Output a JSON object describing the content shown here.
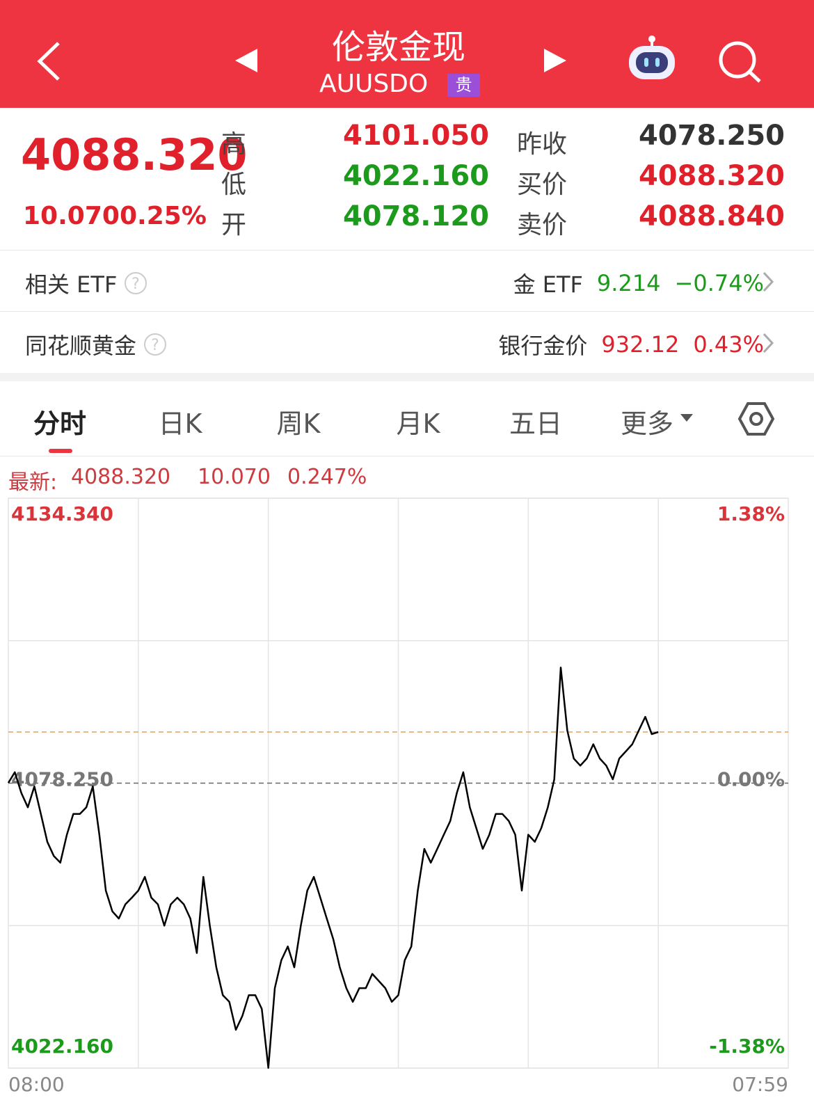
{
  "header": {
    "title": "伦敦金现",
    "code": "AUUSDO",
    "badge": "贵"
  },
  "quote": {
    "price": "4088.320",
    "change": "10.070",
    "change_pct": "0.25%",
    "stats": [
      {
        "label": "高",
        "value": "4101.050"
      },
      {
        "label": "低",
        "value": "4022.160"
      },
      {
        "label": "开",
        "value": "4078.120"
      },
      {
        "label": "昨收",
        "value": "4078.250"
      },
      {
        "label": "买价",
        "value": "4088.320"
      },
      {
        "label": "卖价",
        "value": "4088.840"
      }
    ]
  },
  "links": [
    {
      "label": "相关 ETF",
      "name": "金 ETF",
      "value": "9.214",
      "change": "−0.74%"
    },
    {
      "label": "同花顺黄金",
      "name": "银行金价",
      "value": "932.12",
      "change": "0.43%"
    }
  ],
  "tabs": [
    "分时",
    "日K",
    "周K",
    "月K",
    "五日",
    "更多"
  ],
  "latest": {
    "label": "最新:",
    "price": "4088.320",
    "change": "10.070",
    "change_pct": "0.247%"
  },
  "chart_data": {
    "type": "line",
    "color": "#000000",
    "categories": [
      "08:00",
      null,
      null,
      null,
      null,
      null,
      null,
      null,
      null,
      null,
      null,
      null,
      null,
      null,
      null,
      null,
      null,
      null,
      null,
      null,
      null,
      null,
      null,
      null,
      null,
      null,
      null,
      null,
      null,
      null,
      null,
      null,
      null,
      null,
      null,
      null,
      null,
      null,
      null,
      null,
      null,
      null,
      null,
      null,
      null,
      null,
      null,
      null,
      null,
      null,
      null,
      null,
      null,
      null,
      null,
      null,
      null,
      null,
      null,
      null,
      null,
      null,
      null,
      null,
      null,
      null,
      null,
      null,
      null,
      null,
      null,
      null,
      null,
      null,
      null,
      null,
      null,
      null,
      null,
      null,
      null,
      null,
      null,
      null,
      null,
      null,
      null,
      null,
      null,
      null,
      null,
      null,
      null,
      null,
      null,
      null,
      null,
      null,
      null,
      null,
      null,
      null,
      null,
      null,
      null,
      null,
      null,
      null,
      null,
      null,
      null,
      null,
      null,
      null,
      null,
      null,
      null,
      null,
      null,
      null,
      "07:59"
    ],
    "values": [
      4078.3,
      4080.4,
      4076.3,
      4073.5,
      4077.6,
      4072.2,
      4066.7,
      4063.9,
      4062.6,
      4068.1,
      4072.2,
      4072.2,
      4073.5,
      4077.6,
      4068.1,
      4057.1,
      4053.0,
      4051.6,
      4054.4,
      4055.7,
      4057.1,
      4059.8,
      4055.7,
      4054.4,
      4050.2,
      4054.4,
      4055.7,
      4054.4,
      4051.6,
      4044.8,
      4059.8,
      4050.2,
      4042.0,
      4036.5,
      4035.2,
      4029.7,
      4032.4,
      4036.5,
      4036.5,
      4033.8,
      4022.2,
      4037.9,
      4043.4,
      4046.1,
      4042.0,
      4050.2,
      4057.1,
      4059.8,
      4055.7,
      4051.6,
      4047.5,
      4042.0,
      4037.9,
      4035.2,
      4037.9,
      4037.9,
      4040.7,
      4039.3,
      4037.9,
      4035.2,
      4036.5,
      4043.4,
      4046.1,
      4057.1,
      4065.3,
      4062.6,
      4065.3,
      4068.1,
      4070.8,
      4076.3,
      4080.4,
      4073.5,
      4069.4,
      4065.3,
      4068.1,
      4072.2,
      4072.2,
      4070.8,
      4068.1,
      4057.1,
      4068.1,
      4066.7,
      4069.4,
      4073.5,
      4079.0,
      4101.0,
      4088.6,
      4083.1,
      4081.7,
      4083.1,
      4085.9,
      4083.1,
      4081.7,
      4079.0,
      4083.1,
      4084.5,
      4085.9,
      4088.6,
      4091.3,
      4087.9,
      4088.32,
      null,
      null,
      null,
      null,
      null,
      null,
      null,
      null,
      null,
      null,
      null,
      null,
      null,
      null,
      null,
      null,
      null,
      null,
      null,
      null
    ],
    "ylim": [
      4022.16,
      4134.34
    ],
    "yticks": [
      {
        "value": 4022.16,
        "label": "4022.160"
      },
      {
        "value": 4078.25,
        "label": "4078.250"
      },
      {
        "value": 4134.34,
        "label": "4134.340"
      }
    ],
    "y2lim": [
      -1.38,
      1.38
    ],
    "y2ticks": [
      {
        "value": -1.38,
        "label": "-1.38%"
      },
      {
        "value": 0,
        "label": "0.00%"
      },
      {
        "value": 1.38,
        "label": "1.38%"
      }
    ],
    "grid": true
  }
}
